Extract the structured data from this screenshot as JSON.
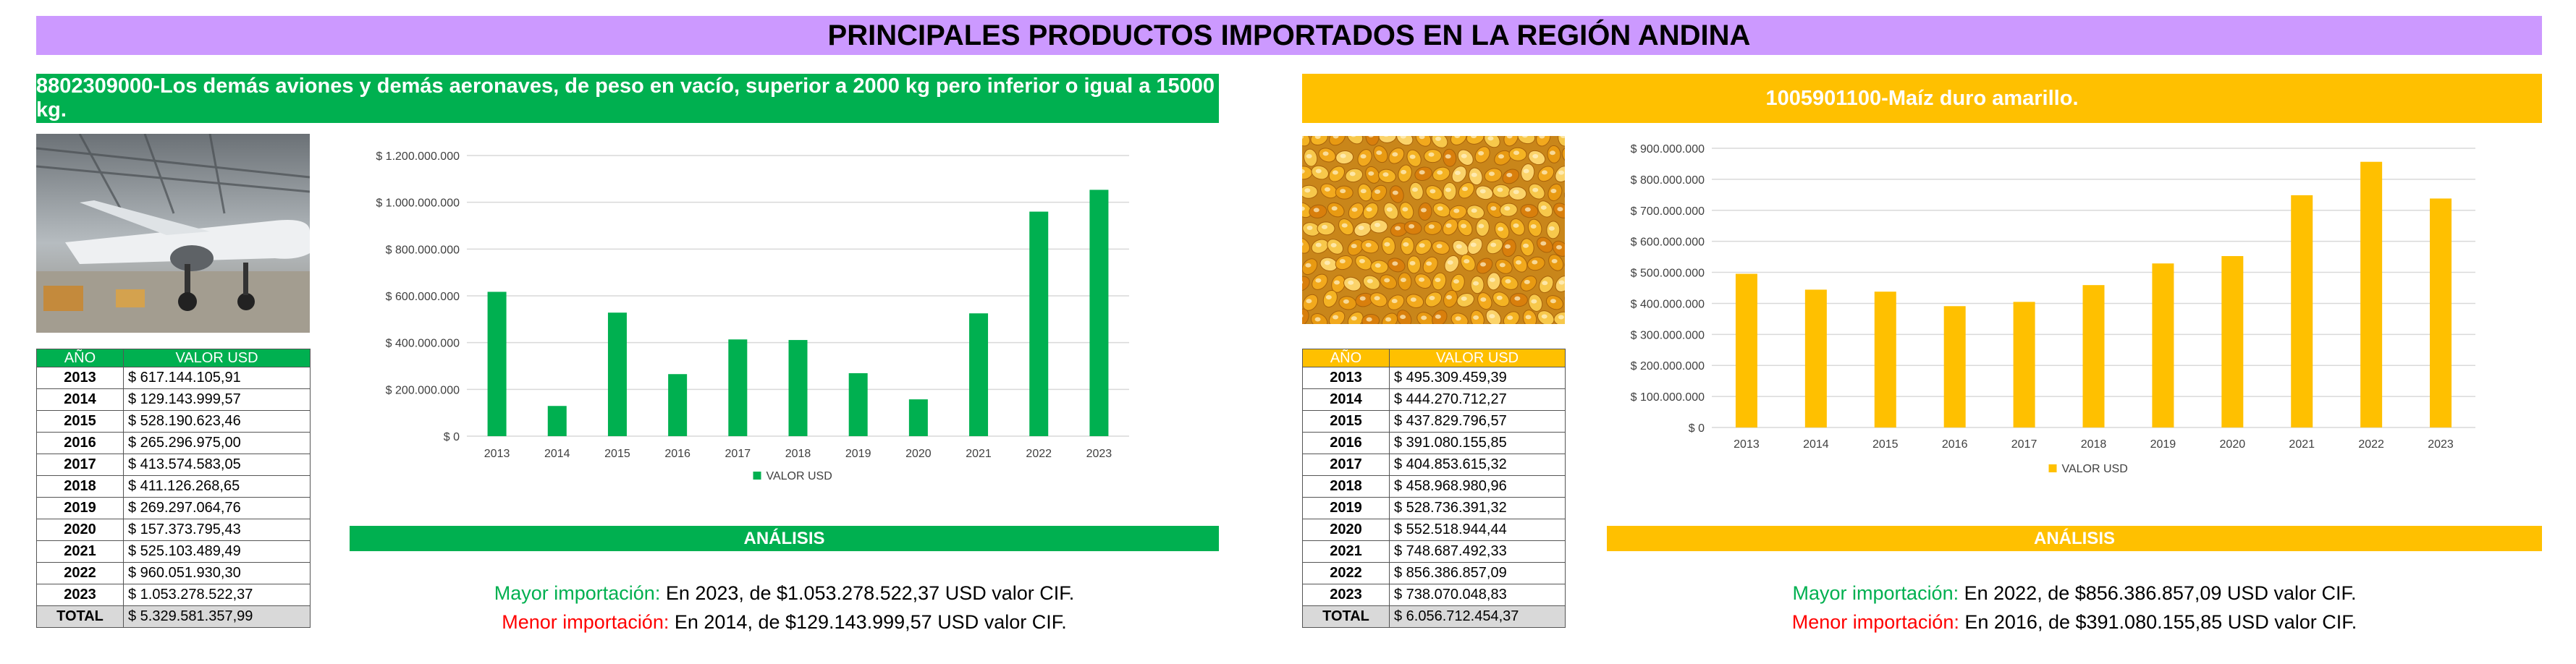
{
  "title": "PRINCIPALES PRODUCTOS IMPORTADOS EN LA REGIÓN ANDINA",
  "colors": {
    "title_bg": "#cc99ff",
    "green": "#00b050",
    "gold": "#ffc000",
    "max_label": "#00b050",
    "min_label": "#ff0000"
  },
  "panels": [
    {
      "header": "8802309000-Los demás aviones y demás aeronaves, de peso en vacío, superior a 2000 kg pero inferior o igual a 15000 kg.",
      "photo_icon": "airplane-hangar-photo",
      "table": {
        "col_year": "AÑO",
        "col_value": "VALOR USD",
        "rows": [
          {
            "year": "2013",
            "value": "$ 617.144.105,91"
          },
          {
            "year": "2014",
            "value": "$ 129.143.999,57"
          },
          {
            "year": "2015",
            "value": "$ 528.190.623,46"
          },
          {
            "year": "2016",
            "value": "$ 265.296.975,00"
          },
          {
            "year": "2017",
            "value": "$ 413.574.583,05"
          },
          {
            "year": "2018",
            "value": "$ 411.126.268,65"
          },
          {
            "year": "2019",
            "value": "$ 269.297.064,76"
          },
          {
            "year": "2020",
            "value": "$ 157.373.795,43"
          },
          {
            "year": "2021",
            "value": "$ 525.103.489,49"
          },
          {
            "year": "2022",
            "value": "$ 960.051.930,30"
          },
          {
            "year": "2023",
            "value": "$ 1.053.278.522,37"
          }
        ],
        "total_label": "TOTAL",
        "total_value": "$ 5.329.581.357,99"
      },
      "analysis_label": "ANÁLISIS",
      "max_label": "Mayor importación:",
      "max_text": " En 2023, de $1.053.278.522,37 USD valor CIF.",
      "min_label": "Menor importación:",
      "min_text": " En 2014, de $129.143.999,57 USD valor CIF."
    },
    {
      "header": "1005901100-Maíz duro amarillo.",
      "photo_icon": "corn-kernels-photo",
      "table": {
        "col_year": "AÑO",
        "col_value": "VALOR USD",
        "rows": [
          {
            "year": "2013",
            "value": "$ 495.309.459,39"
          },
          {
            "year": "2014",
            "value": "$ 444.270.712,27"
          },
          {
            "year": "2015",
            "value": "$ 437.829.796,57"
          },
          {
            "year": "2016",
            "value": "$ 391.080.155,85"
          },
          {
            "year": "2017",
            "value": "$ 404.853.615,32"
          },
          {
            "year": "2018",
            "value": "$ 458.968.980,96"
          },
          {
            "year": "2019",
            "value": "$ 528.736.391,32"
          },
          {
            "year": "2020",
            "value": "$ 552.518.944,44"
          },
          {
            "year": "2021",
            "value": "$ 748.687.492,33"
          },
          {
            "year": "2022",
            "value": "$ 856.386.857,09"
          },
          {
            "year": "2023",
            "value": "$ 738.070.048,83"
          }
        ],
        "total_label": "TOTAL",
        "total_value": "$ 6.056.712.454,37"
      },
      "analysis_label": "ANÁLISIS",
      "max_label": "Mayor importación:",
      "max_text": " En 2022, de $856.386.857,09 USD valor CIF.",
      "min_label": "Menor importación:",
      "min_text": " En 2016, de $391.080.155,85 USD valor CIF."
    }
  ],
  "chart_data": [
    {
      "type": "bar",
      "categories": [
        "2013",
        "2014",
        "2015",
        "2016",
        "2017",
        "2018",
        "2019",
        "2020",
        "2021",
        "2022",
        "2023"
      ],
      "series": [
        {
          "name": "VALOR USD",
          "color": "#00b050",
          "values": [
            617144105.91,
            129143999.57,
            528190623.46,
            265296975.0,
            413574583.05,
            411126268.65,
            269297064.76,
            157373795.43,
            525103489.49,
            960051930.3,
            1053278522.37
          ]
        }
      ],
      "ylim": [
        0,
        1200000000
      ],
      "yticks": [
        0,
        200000000,
        400000000,
        600000000,
        800000000,
        1000000000,
        1200000000
      ],
      "ytick_labels": [
        "$ 0",
        "$ 200.000.000",
        "$ 400.000.000",
        "$ 600.000.000",
        "$ 800.000.000",
        "$ 1.000.000.000",
        "$ 1.200.000.000"
      ],
      "legend": "bottom",
      "grid": true
    },
    {
      "type": "bar",
      "categories": [
        "2013",
        "2014",
        "2015",
        "2016",
        "2017",
        "2018",
        "2019",
        "2020",
        "2021",
        "2022",
        "2023"
      ],
      "series": [
        {
          "name": "VALOR USD",
          "color": "#ffc000",
          "values": [
            495309459.39,
            444270712.27,
            437829796.57,
            391080155.85,
            404853615.32,
            458968980.96,
            528736391.32,
            552518944.44,
            748687492.33,
            856386857.09,
            738070048.83
          ]
        }
      ],
      "ylim": [
        0,
        900000000
      ],
      "yticks": [
        0,
        100000000,
        200000000,
        300000000,
        400000000,
        500000000,
        600000000,
        700000000,
        800000000,
        900000000
      ],
      "ytick_labels": [
        "$ 0",
        "$ 100.000.000",
        "$ 200.000.000",
        "$ 300.000.000",
        "$ 400.000.000",
        "$ 500.000.000",
        "$ 600.000.000",
        "$ 700.000.000",
        "$ 800.000.000",
        "$ 900.000.000"
      ],
      "legend": "bottom",
      "grid": true
    }
  ]
}
